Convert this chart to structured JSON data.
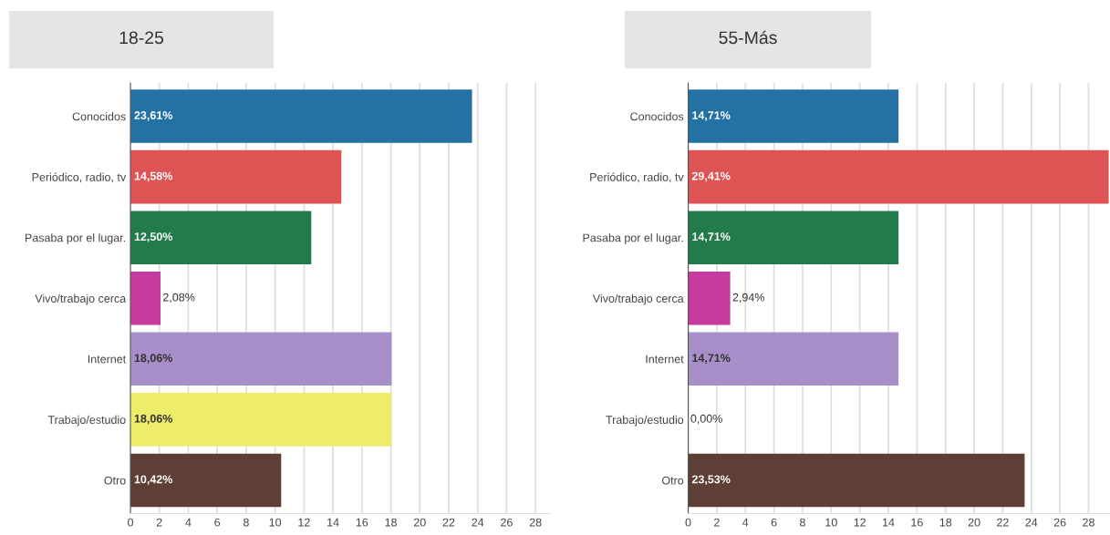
{
  "chart_data": [
    {
      "type": "bar",
      "orientation": "horizontal",
      "title": "18-25",
      "categories": [
        "Conocidos",
        "Periódico, radio, tv",
        "Pasaba por el lugar.",
        "Vivo/trabajo cerca",
        "Internet",
        "Trabajo/estudio",
        "Otro"
      ],
      "values": [
        23.61,
        14.58,
        12.5,
        2.08,
        18.06,
        18.06,
        10.42
      ],
      "colors": [
        "#2471a3",
        "#de5454",
        "#237a4b",
        "#c53ba0",
        "#a98fc9",
        "#eded6a",
        "#5e3f36"
      ],
      "value_labels": [
        "23,61%",
        "14,58%",
        "12,50%",
        "2,08%",
        "18,06%",
        "18,06%",
        "10,42%"
      ],
      "xlim": [
        0,
        29
      ],
      "xticks": [
        0,
        2,
        4,
        6,
        8,
        10,
        12,
        14,
        16,
        18,
        20,
        22,
        24,
        26,
        28
      ],
      "grid": "x",
      "legend": false
    },
    {
      "type": "bar",
      "orientation": "horizontal",
      "title": "55-Más",
      "categories": [
        "Conocidos",
        "Periódico, radio, tv",
        "Pasaba por el lugar.",
        "Vivo/trabajo cerca",
        "Internet",
        "Trabajo/estudio",
        "Otro"
      ],
      "values": [
        14.71,
        29.41,
        14.71,
        2.94,
        14.71,
        0.0,
        23.53
      ],
      "colors": [
        "#2471a3",
        "#de5454",
        "#237a4b",
        "#c53ba0",
        "#a98fc9",
        "#eded6a",
        "#5e3f36"
      ],
      "value_labels": [
        "14,71%",
        "29,41%",
        "14,71%",
        "2,94%",
        "14,71%",
        "0,00%",
        "23,53%"
      ],
      "xlim": [
        0,
        29.5
      ],
      "xticks": [
        0,
        2,
        4,
        6,
        8,
        10,
        12,
        14,
        16,
        18,
        20,
        22,
        24,
        26,
        28
      ],
      "grid": "x",
      "legend": false
    }
  ]
}
